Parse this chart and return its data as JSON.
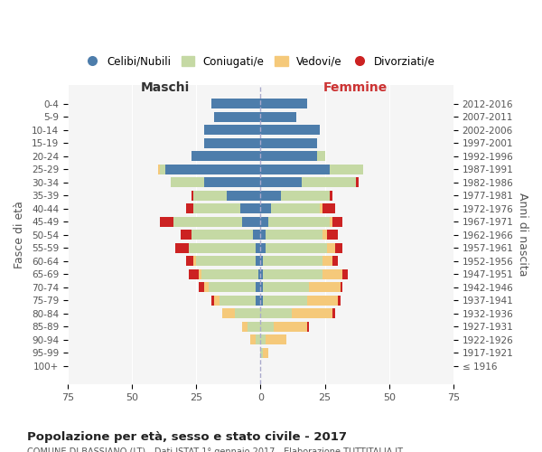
{
  "age_groups": [
    "100+",
    "95-99",
    "90-94",
    "85-89",
    "80-84",
    "75-79",
    "70-74",
    "65-69",
    "60-64",
    "55-59",
    "50-54",
    "45-49",
    "40-44",
    "35-39",
    "30-34",
    "25-29",
    "20-24",
    "15-19",
    "10-14",
    "5-9",
    "0-4"
  ],
  "birth_years": [
    "≤ 1916",
    "1917-1921",
    "1922-1926",
    "1927-1931",
    "1932-1936",
    "1937-1941",
    "1942-1946",
    "1947-1951",
    "1952-1956",
    "1957-1961",
    "1962-1966",
    "1967-1971",
    "1972-1976",
    "1977-1981",
    "1982-1986",
    "1987-1991",
    "1992-1996",
    "1997-2001",
    "2002-2006",
    "2007-2011",
    "2012-2016"
  ],
  "male": {
    "celibi": [
      0,
      0,
      0,
      0,
      0,
      2,
      2,
      1,
      2,
      2,
      3,
      7,
      8,
      13,
      22,
      37,
      27,
      22,
      22,
      18,
      19
    ],
    "coniugati": [
      0,
      0,
      2,
      5,
      10,
      14,
      18,
      22,
      23,
      26,
      24,
      27,
      18,
      13,
      13,
      2,
      0,
      0,
      0,
      0,
      0
    ],
    "vedovi": [
      0,
      0,
      2,
      2,
      5,
      2,
      2,
      1,
      1,
      0,
      0,
      0,
      0,
      0,
      0,
      1,
      0,
      0,
      0,
      0,
      0
    ],
    "divorziati": [
      0,
      0,
      0,
      0,
      0,
      1,
      2,
      4,
      3,
      5,
      4,
      5,
      3,
      1,
      0,
      0,
      0,
      0,
      0,
      0,
      0
    ]
  },
  "female": {
    "nubili": [
      0,
      0,
      0,
      0,
      0,
      1,
      1,
      1,
      1,
      2,
      2,
      3,
      4,
      8,
      16,
      27,
      22,
      22,
      23,
      14,
      18
    ],
    "coniugate": [
      0,
      1,
      2,
      5,
      12,
      17,
      18,
      23,
      23,
      24,
      22,
      24,
      19,
      19,
      21,
      13,
      3,
      0,
      0,
      0,
      0
    ],
    "vedove": [
      0,
      2,
      8,
      13,
      16,
      12,
      12,
      8,
      4,
      3,
      2,
      1,
      1,
      0,
      0,
      0,
      0,
      0,
      0,
      0,
      0
    ],
    "divorziate": [
      0,
      0,
      0,
      1,
      1,
      1,
      1,
      2,
      2,
      3,
      4,
      4,
      5,
      1,
      1,
      0,
      0,
      0,
      0,
      0,
      0
    ]
  },
  "colors": {
    "celibi": "#4d7dab",
    "coniugati": "#c5d9a4",
    "vedovi": "#f5c97a",
    "divorziati": "#cc2222"
  },
  "title": "Popolazione per età, sesso e stato civile - 2017",
  "subtitle": "COMUNE DI BASSIANO (LT) - Dati ISTAT 1° gennaio 2017 - Elaborazione TUTTITALIA.IT",
  "ylabel_left": "Fasce di età",
  "ylabel_right": "Anni di nascita",
  "xlabel_left": "Maschi",
  "xlabel_right": "Femmine",
  "xlim": 75,
  "legend_labels": [
    "Celibi/Nubili",
    "Coniugati/e",
    "Vedovi/e",
    "Divorziati/e"
  ],
  "bg_color": "#f5f5f5"
}
